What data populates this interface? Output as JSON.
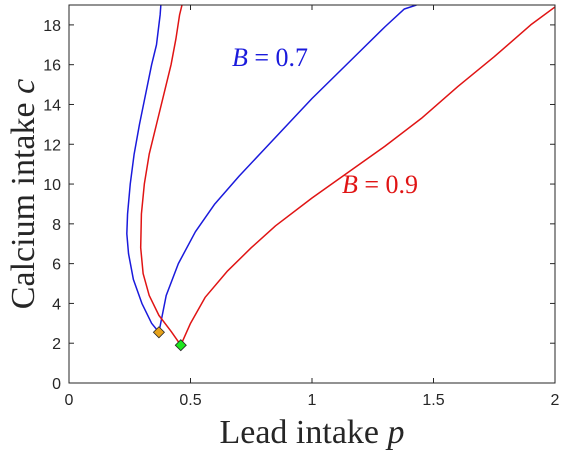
{
  "chart_data": {
    "type": "line",
    "title": "",
    "xlabel": {
      "text": "Lead intake ",
      "var": "p"
    },
    "ylabel": {
      "text": "Calcium intake ",
      "var": "c"
    },
    "xlim": [
      0,
      2
    ],
    "ylim": [
      0,
      19
    ],
    "xticks": [
      0,
      0.5,
      1,
      1.5,
      2
    ],
    "xtick_labels": [
      "0",
      "0.5",
      "1",
      "1.5",
      "2"
    ],
    "yticks": [
      0,
      2,
      4,
      6,
      8,
      10,
      12,
      14,
      16,
      18
    ],
    "ytick_labels": [
      "0",
      "2",
      "4",
      "6",
      "8",
      "10",
      "12",
      "14",
      "16",
      "18"
    ],
    "grid": false,
    "series": [
      {
        "name": "B = 0.7",
        "label": {
          "var": "B",
          "rest": " = 0.7"
        },
        "color": "#1a1adc",
        "branches": [
          {
            "x": [
              0.37,
              0.34,
              0.3,
              0.265,
              0.245,
              0.238,
              0.241,
              0.252,
              0.268,
              0.29,
              0.315,
              0.34,
              0.36,
              0.37,
              0.375,
              0.378
            ],
            "y": [
              2.55,
              3.0,
              4.0,
              5.2,
              6.5,
              7.5,
              8.5,
              10.0,
              11.5,
              13.0,
              14.5,
              16.0,
              17.0,
              18.0,
              18.5,
              19.0
            ]
          },
          {
            "x": [
              0.37,
              0.4,
              0.45,
              0.52,
              0.6,
              0.7,
              0.8,
              0.9,
              1.0,
              1.1,
              1.2,
              1.3,
              1.38,
              1.43
            ],
            "y": [
              2.55,
              4.4,
              6.0,
              7.6,
              9.0,
              10.4,
              11.7,
              13.0,
              14.3,
              15.5,
              16.7,
              17.9,
              18.8,
              19.0
            ]
          }
        ],
        "marker": {
          "x": 0.37,
          "y": 2.55,
          "color": "#e6a21a"
        }
      },
      {
        "name": "B = 0.9",
        "label": {
          "var": "B",
          "rest": " = 0.9"
        },
        "color": "#e01414",
        "branches": [
          {
            "x": [
              0.46,
              0.42,
              0.37,
              0.33,
              0.305,
              0.295,
              0.298,
              0.31,
              0.33,
              0.36,
              0.39,
              0.42,
              0.44,
              0.455,
              0.465
            ],
            "y": [
              1.9,
              2.6,
              3.4,
              4.4,
              5.5,
              6.8,
              8.5,
              10.0,
              11.5,
              13.0,
              14.5,
              16.0,
              17.3,
              18.5,
              19.0
            ]
          },
          {
            "x": [
              0.46,
              0.5,
              0.56,
              0.65,
              0.75,
              0.85,
              1.0,
              1.15,
              1.3,
              1.45,
              1.6,
              1.75,
              1.9,
              2.0
            ],
            "y": [
              1.9,
              3.0,
              4.3,
              5.6,
              6.8,
              7.9,
              9.3,
              10.6,
              11.9,
              13.3,
              14.9,
              16.4,
              18.0,
              18.9
            ]
          }
        ],
        "marker": {
          "x": 0.46,
          "y": 1.9,
          "color": "#1ee61e"
        }
      }
    ]
  }
}
